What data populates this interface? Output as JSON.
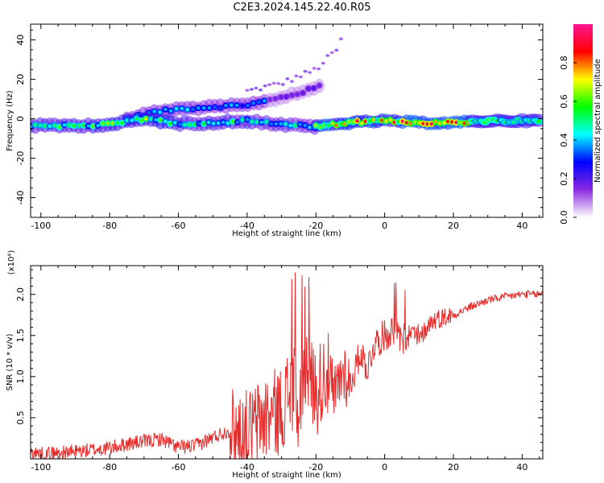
{
  "title": "C2E3.2024.145.22.40.R05",
  "chart_data": [
    {
      "type": "heatmap",
      "xlabel": "Height of straight line (km)",
      "ylabel": "Frequency (Hz)",
      "xlim": [
        -103,
        46
      ],
      "ylim": [
        -50,
        48
      ],
      "xticks": [
        -100,
        -80,
        -60,
        -40,
        -20,
        0,
        20,
        40
      ],
      "yticks": [
        -40,
        -20,
        0,
        20,
        40
      ],
      "colorbar": {
        "label": "Normalized spectral amplitude",
        "range": [
          0.0,
          1.0
        ],
        "ticks": [
          0.0,
          0.2,
          0.4,
          0.6,
          0.8
        ],
        "tick_labels": [
          "0.0",
          "0.2",
          "0.4",
          "0.6",
          "0.8"
        ],
        "colors": [
          "#ffffff",
          "#8a2be2",
          "#0000ff",
          "#00ffff",
          "#00ff00",
          "#ffff00",
          "#ff0000",
          "#ff1493"
        ]
      },
      "features": [
        {
          "name": "main band",
          "x": [
            -103,
            -90,
            -80,
            -70,
            -60,
            -50,
            -40,
            -30,
            -20,
            -10,
            0,
            10,
            20,
            30,
            46
          ],
          "y": [
            -3.5,
            -3.5,
            -3,
            0,
            -2.5,
            -2,
            -1,
            -3,
            -4,
            -2,
            -1,
            -2,
            -2,
            -1,
            -1
          ]
        },
        {
          "name": "upper branch",
          "x": [
            -75,
            -68,
            -60,
            -50,
            -40,
            -32,
            -25,
            -18
          ],
          "y": [
            0,
            3,
            5,
            6,
            7,
            10,
            13,
            17
          ]
        },
        {
          "name": "faint branch",
          "x": [
            -40,
            -30,
            -20,
            -14,
            -12
          ],
          "y": [
            14,
            18,
            25,
            35,
            42
          ]
        }
      ]
    },
    {
      "type": "line",
      "xlabel": "Height of straight line (km)",
      "ylabel": "SNR (10 * v/v)",
      "y_multiplier": "(x10⁴)",
      "xlim": [
        -103,
        46
      ],
      "ylim": [
        0,
        23500
      ],
      "xticks": [
        -100,
        -80,
        -60,
        -40,
        -20,
        0,
        20,
        40
      ],
      "yticks": [
        5000,
        10000,
        15000,
        20000
      ],
      "ytick_labels": [
        "0.5",
        "1.0",
        "1.5",
        "2.0"
      ],
      "series": [
        {
          "color": "#e82c2c",
          "x": [
            -103,
            -100,
            -95,
            -90,
            -85,
            -80,
            -75,
            -70,
            -65,
            -60,
            -55,
            -50,
            -45,
            -40,
            -35,
            -30,
            -27,
            -25,
            -23,
            -20,
            -17,
            -15,
            -12,
            -10,
            -7,
            -5,
            -3,
            0,
            3,
            5,
            7,
            10,
            13,
            15,
            20,
            25,
            30,
            35,
            40,
            45,
            46
          ],
          "y": [
            800,
            600,
            700,
            900,
            1100,
            1300,
            1800,
            2100,
            2400,
            1400,
            1600,
            2600,
            3500,
            3000,
            5000,
            6000,
            9000,
            6000,
            12000,
            8000,
            11000,
            7000,
            11000,
            9000,
            13000,
            11000,
            14000,
            15000,
            16000,
            14000,
            15500,
            14500,
            16500,
            17000,
            17500,
            18500,
            19300,
            19700,
            20000,
            20000,
            20200
          ]
        }
      ]
    }
  ]
}
